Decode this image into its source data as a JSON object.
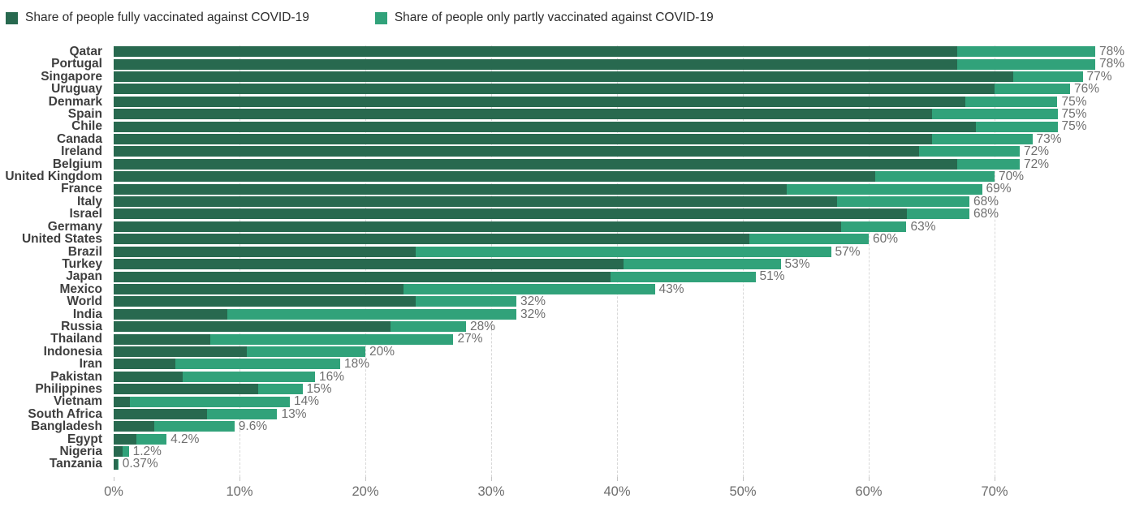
{
  "legend": {
    "items": [
      {
        "label": "Share of people fully vaccinated against COVID-19",
        "color": "#28694f"
      },
      {
        "label": "Share of people only partly vaccinated against COVID-19",
        "color": "#31a27a"
      }
    ]
  },
  "chart_data": {
    "type": "bar",
    "stacked": true,
    "orientation": "horizontal",
    "unit": "%",
    "grid": "vertical-dashed",
    "legend_position": "top-left",
    "x_ticks": [
      "0%",
      "10%",
      "20%",
      "30%",
      "40%",
      "50%",
      "60%",
      "70%"
    ],
    "x_tick_values": [
      0,
      10,
      20,
      30,
      40,
      50,
      60,
      70
    ],
    "xlim": [
      0,
      82
    ],
    "series": [
      {
        "name": "Share of people fully vaccinated against COVID-19",
        "color": "#28694f"
      },
      {
        "name": "Share of people only partly vaccinated against COVID-19",
        "color": "#31a27a"
      }
    ],
    "rows": [
      {
        "country": "Qatar",
        "fully": 67,
        "partly": 11,
        "total": 78,
        "label": "78%"
      },
      {
        "country": "Portugal",
        "fully": 67,
        "partly": 11,
        "total": 78,
        "label": "78%"
      },
      {
        "country": "Singapore",
        "fully": 71.5,
        "partly": 5.5,
        "total": 77,
        "label": "77%"
      },
      {
        "country": "Uruguay",
        "fully": 70,
        "partly": 6,
        "total": 76,
        "label": "76%"
      },
      {
        "country": "Denmark",
        "fully": 67.7,
        "partly": 7.3,
        "total": 75,
        "label": "75%"
      },
      {
        "country": "Spain",
        "fully": 65,
        "partly": 10,
        "total": 75,
        "label": "75%"
      },
      {
        "country": "Chile",
        "fully": 68.5,
        "partly": 6.5,
        "total": 75,
        "label": "75%"
      },
      {
        "country": "Canada",
        "fully": 65,
        "partly": 8,
        "total": 73,
        "label": "73%"
      },
      {
        "country": "Ireland",
        "fully": 64,
        "partly": 8,
        "total": 72,
        "label": "72%"
      },
      {
        "country": "Belgium",
        "fully": 67,
        "partly": 5,
        "total": 72,
        "label": "72%"
      },
      {
        "country": "United Kingdom",
        "fully": 60.5,
        "partly": 9.5,
        "total": 70,
        "label": "70%"
      },
      {
        "country": "France",
        "fully": 53.5,
        "partly": 15.5,
        "total": 69,
        "label": "69%"
      },
      {
        "country": "Italy",
        "fully": 57.5,
        "partly": 10.5,
        "total": 68,
        "label": "68%"
      },
      {
        "country": "Israel",
        "fully": 63,
        "partly": 5,
        "total": 68,
        "label": "68%"
      },
      {
        "country": "Germany",
        "fully": 57.8,
        "partly": 5.2,
        "total": 63,
        "label": "63%"
      },
      {
        "country": "United States",
        "fully": 50.5,
        "partly": 9.5,
        "total": 60,
        "label": "60%"
      },
      {
        "country": "Brazil",
        "fully": 24,
        "partly": 33,
        "total": 57,
        "label": "57%"
      },
      {
        "country": "Turkey",
        "fully": 40.5,
        "partly": 12.5,
        "total": 53,
        "label": "53%"
      },
      {
        "country": "Japan",
        "fully": 39.5,
        "partly": 11.5,
        "total": 51,
        "label": "51%"
      },
      {
        "country": "Mexico",
        "fully": 23,
        "partly": 20,
        "total": 43,
        "label": "43%"
      },
      {
        "country": "World",
        "fully": 24,
        "partly": 8,
        "total": 32,
        "label": "32%"
      },
      {
        "country": "India",
        "fully": 9,
        "partly": 23,
        "total": 32,
        "label": "32%"
      },
      {
        "country": "Russia",
        "fully": 22,
        "partly": 6,
        "total": 28,
        "label": "28%"
      },
      {
        "country": "Thailand",
        "fully": 7.7,
        "partly": 19.3,
        "total": 27,
        "label": "27%"
      },
      {
        "country": "Indonesia",
        "fully": 10.6,
        "partly": 9.4,
        "total": 20,
        "label": "20%"
      },
      {
        "country": "Iran",
        "fully": 4.9,
        "partly": 13.1,
        "total": 18,
        "label": "18%"
      },
      {
        "country": "Pakistan",
        "fully": 5.5,
        "partly": 10.5,
        "total": 16,
        "label": "16%"
      },
      {
        "country": "Philippines",
        "fully": 11.5,
        "partly": 3.5,
        "total": 15,
        "label": "15%"
      },
      {
        "country": "Vietnam",
        "fully": 1.3,
        "partly": 12.7,
        "total": 14,
        "label": "14%"
      },
      {
        "country": "South Africa",
        "fully": 7.4,
        "partly": 5.6,
        "total": 13,
        "label": "13%"
      },
      {
        "country": "Bangladesh",
        "fully": 3.2,
        "partly": 6.4,
        "total": 9.6,
        "label": "9.6%"
      },
      {
        "country": "Egypt",
        "fully": 1.8,
        "partly": 2.4,
        "total": 4.2,
        "label": "4.2%"
      },
      {
        "country": "Nigeria",
        "fully": 0.7,
        "partly": 0.5,
        "total": 1.2,
        "label": "1.2%"
      },
      {
        "country": "Tanzania",
        "fully": 0.33,
        "partly": 0.04,
        "total": 0.37,
        "label": "0.37%"
      }
    ]
  }
}
